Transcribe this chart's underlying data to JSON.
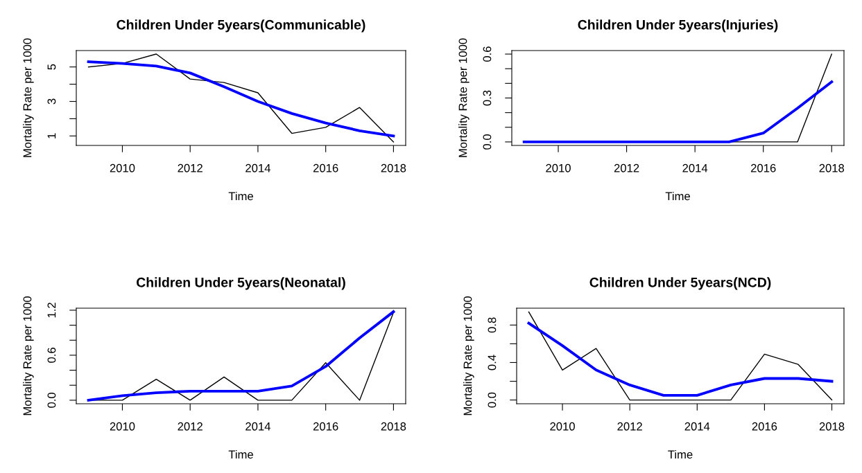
{
  "chart_data": [
    {
      "type": "line",
      "title": "Children Under 5years(Communicable)",
      "xlabel": "Time",
      "ylabel": "Mortality Rate per 1000",
      "x": [
        2009,
        2010,
        2011,
        2012,
        2013,
        2014,
        2015,
        2016,
        2017,
        2018
      ],
      "series": [
        {
          "color": "#000000",
          "values": [
            5.0,
            5.2,
            5.75,
            4.3,
            4.1,
            3.5,
            1.15,
            1.5,
            2.65,
            0.65
          ]
        },
        {
          "color": "#0000ff",
          "values": [
            5.3,
            5.2,
            5.05,
            4.65,
            3.85,
            3.0,
            2.3,
            1.75,
            1.3,
            1.0
          ]
        }
      ],
      "xlim": [
        2008.64,
        2018.36
      ],
      "xticks": [
        2010,
        2012,
        2014,
        2016,
        2018
      ],
      "ylim": [
        0.45,
        5.95
      ],
      "yticks": [
        1,
        {
          "value": 2,
          "label": null
        },
        3,
        {
          "value": 4,
          "label": null
        },
        5
      ],
      "grid": false,
      "legend": false,
      "marker": "none",
      "line_style": "solid"
    },
    {
      "type": "line",
      "title": "Children Under 5years(Injuries)",
      "xlabel": "Time",
      "ylabel": "Mortality Rate per 1000",
      "x": [
        2009,
        2010,
        2011,
        2012,
        2013,
        2014,
        2015,
        2016,
        2017,
        2018
      ],
      "series": [
        {
          "color": "#000000",
          "values": [
            null,
            null,
            null,
            null,
            null,
            null,
            0,
            0,
            0,
            0.6
          ]
        },
        {
          "color": "#0000ff",
          "values": [
            0,
            0,
            0,
            0,
            0,
            0,
            0,
            0.06,
            0.23,
            0.41
          ]
        }
      ],
      "xlim": [
        2008.64,
        2018.36
      ],
      "xticks": [
        2010,
        2012,
        2014,
        2016,
        2018
      ],
      "ylim": [
        -0.024,
        0.624
      ],
      "yticks": [
        {
          "value": 0,
          "label": "0.0"
        },
        {
          "value": 0.1,
          "label": null
        },
        {
          "value": 0.2,
          "label": null
        },
        0.3,
        {
          "value": 0.4,
          "label": null
        },
        {
          "value": 0.5,
          "label": null
        },
        0.6
      ],
      "grid": false,
      "legend": false,
      "marker": "none",
      "line_style": "solid"
    },
    {
      "type": "line",
      "title": "Children Under 5years(Neonatal)",
      "xlabel": "Time",
      "ylabel": "Mortality Rate per 1000",
      "x": [
        2009,
        2010,
        2011,
        2012,
        2013,
        2014,
        2015,
        2016,
        2017,
        2018
      ],
      "series": [
        {
          "color": "#000000",
          "values": [
            0,
            0,
            0.28,
            0,
            0.31,
            0,
            0,
            0.5,
            0,
            1.17
          ]
        },
        {
          "color": "#0000ff",
          "values": [
            0,
            0.06,
            0.1,
            0.12,
            0.12,
            0.12,
            0.19,
            0.45,
            0.83,
            1.18
          ]
        }
      ],
      "xlim": [
        2008.64,
        2018.36
      ],
      "xticks": [
        2010,
        2012,
        2014,
        2016,
        2018
      ],
      "ylim": [
        -0.047,
        1.227
      ],
      "yticks": [
        {
          "value": 0,
          "label": "0.0"
        },
        {
          "value": 0.2,
          "label": null
        },
        {
          "value": 0.4,
          "label": null
        },
        0.6,
        {
          "value": 0.8,
          "label": null
        },
        {
          "value": 1.0,
          "label": null
        },
        1.2
      ],
      "grid": false,
      "legend": false,
      "marker": "none",
      "line_style": "solid"
    },
    {
      "type": "line",
      "title": "Children Under 5years(NCD)",
      "xlabel": "Time",
      "ylabel": "Mortality Rate per 1000",
      "x": [
        2009,
        2010,
        2011,
        2012,
        2013,
        2014,
        2015,
        2016,
        2017,
        2018
      ],
      "series": [
        {
          "color": "#000000",
          "values": [
            0.94,
            0.32,
            0.55,
            0,
            0,
            0,
            0,
            0.49,
            0.38,
            0
          ]
        },
        {
          "color": "#0000ff",
          "values": [
            0.82,
            0.58,
            0.32,
            0.16,
            0.05,
            0.05,
            0.16,
            0.23,
            0.23,
            0.2
          ]
        }
      ],
      "xlim": [
        2008.64,
        2018.36
      ],
      "xticks": [
        2010,
        2012,
        2014,
        2016,
        2018
      ],
      "ylim": [
        -0.04,
        0.98
      ],
      "yticks": [
        {
          "value": 0,
          "label": "0.0"
        },
        {
          "value": 0.2,
          "label": null
        },
        0.4,
        {
          "value": 0.6,
          "label": null
        },
        0.8
      ],
      "grid": false,
      "legend": false,
      "marker": "none",
      "line_style": "solid"
    }
  ]
}
